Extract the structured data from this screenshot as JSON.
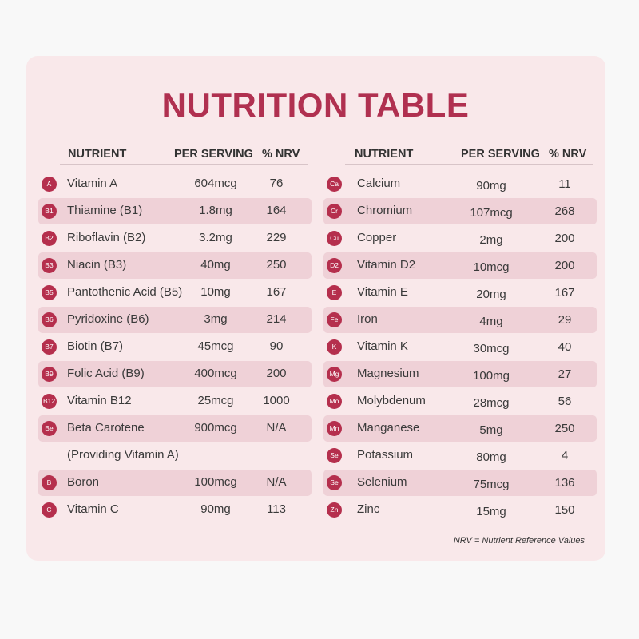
{
  "title": "NUTRITION TABLE",
  "headers": {
    "nutrient": "NUTRIENT",
    "per_serving": "PER SERVING",
    "nrv": "% NRV"
  },
  "left": [
    {
      "badge": "A",
      "name": "Vitamin A",
      "serving": "604mcg",
      "nrv": "76"
    },
    {
      "badge": "B1",
      "name": "Thiamine (B1)",
      "serving": "1.8mg",
      "nrv": "164"
    },
    {
      "badge": "B2",
      "name": "Riboflavin (B2)",
      "serving": "3.2mg",
      "nrv": "229"
    },
    {
      "badge": "B3",
      "name": "Niacin (B3)",
      "serving": "40mg",
      "nrv": "250"
    },
    {
      "badge": "B5",
      "name": "Pantothenic Acid (B5)",
      "serving": "10mg",
      "nrv": "167"
    },
    {
      "badge": "B6",
      "name": "Pyridoxine (B6)",
      "serving": "3mg",
      "nrv": "214"
    },
    {
      "badge": "B7",
      "name": "Biotin (B7)",
      "serving": "45mcg",
      "nrv": "90"
    },
    {
      "badge": "B9",
      "name": "Folic Acid (B9)",
      "serving": "400mcg",
      "nrv": "200"
    },
    {
      "badge": "B12",
      "name": "Vitamin B12",
      "serving": "25mcg",
      "nrv": "1000"
    },
    {
      "badge": "Be",
      "name": "Beta Carotene",
      "serving": "900mcg",
      "nrv": "N/A"
    },
    {
      "badge": "",
      "name": "(Providing Vitamin A)",
      "serving": "",
      "nrv": ""
    },
    {
      "badge": "B",
      "name": "Boron",
      "serving": "100mcg",
      "nrv": "N/A"
    },
    {
      "badge": "C",
      "name": "Vitamin C",
      "serving": "90mg",
      "nrv": "113"
    }
  ],
  "right": [
    {
      "badge": "Ca",
      "name": "Calcium",
      "serving": "90mg",
      "nrv": "11"
    },
    {
      "badge": "Cr",
      "name": "Chromium",
      "serving": "107mcg",
      "nrv": "268"
    },
    {
      "badge": "Cu",
      "name": "Copper",
      "serving": "2mg",
      "nrv": "200"
    },
    {
      "badge": "D2",
      "name": "Vitamin D2",
      "serving": "10mcg",
      "nrv": "200"
    },
    {
      "badge": "E",
      "name": "Vitamin E",
      "serving": "20mg",
      "nrv": "167"
    },
    {
      "badge": "Fe",
      "name": "Iron",
      "serving": "4mg",
      "nrv": "29"
    },
    {
      "badge": "K",
      "name": "Vitamin K",
      "serving": "30mcg",
      "nrv": "40"
    },
    {
      "badge": "Mg",
      "name": "Magnesium",
      "serving": "100mg",
      "nrv": "27"
    },
    {
      "badge": "Mo",
      "name": "Molybdenum",
      "serving": "28mcg",
      "nrv": "56"
    },
    {
      "badge": "Mn",
      "name": "Manganese",
      "serving": "5mg",
      "nrv": "250"
    },
    {
      "badge": "Se",
      "name": "Potassium",
      "serving": "80mg",
      "nrv": "4"
    },
    {
      "badge": "Se",
      "name": "Selenium",
      "serving": "75mcg",
      "nrv": "136"
    },
    {
      "badge": "Zn",
      "name": "Zinc",
      "serving": "15mg",
      "nrv": "150"
    }
  ],
  "footnote": "NRV = Nutrient Reference Values",
  "colors": {
    "accent": "#b52f4d",
    "title": "#b03050",
    "card": "#f9e8ea",
    "row_shade": "#efd1d7"
  }
}
